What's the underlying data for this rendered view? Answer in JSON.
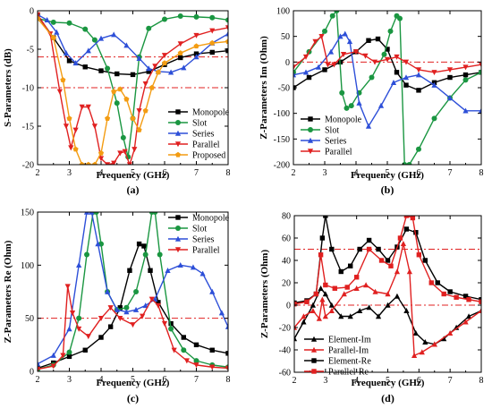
{
  "chart_data": [
    {
      "type": "line",
      "panel_label": "(a)",
      "xlabel": "Frequency (GHz)",
      "ylabel": "S-Parameters (dB)",
      "xlim": [
        2,
        8
      ],
      "ylim": [
        -20,
        0
      ],
      "xticks": [
        "2",
        "3",
        "4",
        "5",
        "6",
        "7",
        "8"
      ],
      "yticks": [
        "0",
        "-5",
        "-10",
        "-15",
        "-20"
      ],
      "legend_position": "bottom-right",
      "reference_lines": [
        -6,
        -10
      ],
      "series": [
        {
          "name": "Monopole",
          "color": "#000000",
          "marker": "square",
          "x": [
            2,
            2.5,
            3,
            3.5,
            4,
            4.5,
            5,
            5.5,
            6,
            6.5,
            7,
            7.5,
            8
          ],
          "y": [
            -0.6,
            -3.5,
            -6.5,
            -7.3,
            -7.8,
            -8.2,
            -8.3,
            -7.9,
            -7,
            -6.1,
            -5.6,
            -5.4,
            -5.2
          ]
        },
        {
          "name": "Slot",
          "color": "#1a9641",
          "marker": "circle",
          "x": [
            2,
            2.5,
            3,
            3.5,
            3.8,
            4.2,
            4.5,
            4.7,
            4.85,
            5,
            5.2,
            5.5,
            6,
            6.5,
            7,
            7.5,
            8
          ],
          "y": [
            -1,
            -1.5,
            -1.6,
            -2.4,
            -3.8,
            -7.5,
            -12,
            -16.5,
            -19,
            -14,
            -6,
            -2.3,
            -1.1,
            -0.7,
            -0.8,
            -0.9,
            -1.2
          ]
        },
        {
          "name": "Series",
          "color": "#2d4fd8",
          "marker": "triangle",
          "x": [
            2,
            2.3,
            2.6,
            2.9,
            3.2,
            3.6,
            4,
            4.4,
            4.8,
            5.2,
            5.5,
            5.8,
            6.2,
            6.6,
            7,
            7.5,
            8
          ],
          "y": [
            -0.5,
            -1.2,
            -2.8,
            -5.5,
            -6.8,
            -5.2,
            -3.6,
            -3.1,
            -4.5,
            -6.2,
            -7.5,
            -7.9,
            -8,
            -7.4,
            -6,
            -4.2,
            -3
          ]
        },
        {
          "name": "Parallel",
          "color": "#e02020",
          "marker": "inverted-triangle",
          "x": [
            2,
            2.4,
            2.7,
            2.9,
            3.05,
            3.2,
            3.4,
            3.6,
            3.8,
            4,
            4.2,
            4.4,
            4.6,
            4.75,
            4.9,
            5.05,
            5.2,
            5.4,
            5.7,
            6,
            6.5,
            7,
            7.5,
            8
          ],
          "y": [
            -0.5,
            -3,
            -10.5,
            -15,
            -17.8,
            -15.5,
            -12.5,
            -12.5,
            -15,
            -19.2,
            -20,
            -19.8,
            -18.5,
            -18.3,
            -20,
            -18,
            -13,
            -9.5,
            -7.2,
            -5.8,
            -4.3,
            -3.2,
            -2.6,
            -2.2
          ]
        },
        {
          "name": "Proposed",
          "color": "#f39c12",
          "marker": "pentagon",
          "x": [
            2,
            2.5,
            2.8,
            3,
            3.2,
            3.4,
            3.6,
            3.8,
            4,
            4.2,
            4.4,
            4.6,
            4.8,
            5,
            5.2,
            5.4,
            5.6,
            5.8,
            6,
            6.5,
            7,
            7.5,
            8
          ],
          "y": [
            -1,
            -3.5,
            -9,
            -14,
            -18,
            -20,
            -20,
            -20,
            -18.5,
            -14,
            -10.5,
            -10.2,
            -11.5,
            -14,
            -15.5,
            -13,
            -10,
            -8,
            -6.8,
            -5.5,
            -4.6,
            -4.2,
            -4
          ]
        }
      ]
    },
    {
      "type": "line",
      "panel_label": "(b)",
      "xlabel": "Frequency (GHz)",
      "ylabel": "Z-Parameters Im (Ohm)",
      "xlim": [
        2,
        8
      ],
      "ylim": [
        -200,
        100
      ],
      "xticks": [
        "2",
        "3",
        "4",
        "5",
        "6",
        "7",
        "8"
      ],
      "yticks": [
        "100",
        "50",
        "0",
        "-50",
        "-100",
        "-150",
        "-200"
      ],
      "legend_position": "bottom-left",
      "reference_lines": [
        0
      ],
      "series": [
        {
          "name": "Monopole",
          "color": "#000000",
          "marker": "square",
          "x": [
            2,
            2.5,
            3,
            3.5,
            4,
            4.4,
            4.7,
            5,
            5.3,
            5.6,
            6,
            6.5,
            7,
            7.5,
            8
          ],
          "y": [
            -50,
            -30,
            -15,
            0,
            20,
            42,
            45,
            25,
            -20,
            -45,
            -55,
            -40,
            -30,
            -25,
            -20
          ]
        },
        {
          "name": "Slot",
          "color": "#1a9641",
          "marker": "circle",
          "x": [
            2,
            2.5,
            3,
            3.25,
            3.38,
            3.55,
            3.7,
            3.85,
            4.1,
            4.5,
            4.9,
            5.1,
            5.3,
            5.4,
            5.55,
            5.7,
            6,
            6.5,
            7,
            7.5,
            8
          ],
          "y": [
            -20,
            20,
            60,
            90,
            100,
            -60,
            -90,
            -85,
            -60,
            -30,
            15,
            60,
            90,
            85,
            -200,
            -200,
            -170,
            -110,
            -70,
            -35,
            -20
          ]
        },
        {
          "name": "Series",
          "color": "#2d4fd8",
          "marker": "triangle",
          "x": [
            2,
            2.4,
            2.8,
            3.2,
            3.5,
            3.65,
            3.8,
            4.1,
            4.4,
            4.8,
            5.2,
            5.6,
            6,
            6.5,
            7,
            7.5,
            8
          ],
          "y": [
            -25,
            -20,
            -10,
            20,
            50,
            55,
            40,
            -80,
            -125,
            -85,
            -40,
            -30,
            -25,
            -45,
            -70,
            -95,
            -95
          ]
        },
        {
          "name": "Parallel",
          "color": "#e02020",
          "marker": "inverted-triangle",
          "x": [
            2,
            2.4,
            2.7,
            2.9,
            3.1,
            3.3,
            3.6,
            4,
            4.3,
            4.6,
            5,
            5.3,
            5.6,
            6,
            6.5,
            7,
            7.5,
            8
          ],
          "y": [
            -10,
            10,
            40,
            50,
            -5,
            -5,
            15,
            20,
            12,
            0,
            5,
            10,
            0,
            -15,
            -20,
            -15,
            -10,
            -5
          ]
        }
      ]
    },
    {
      "type": "line",
      "panel_label": "(c)",
      "xlabel": "Frequency (GHz)",
      "ylabel": "Z-Parameters Re (Ohm)",
      "xlim": [
        2,
        8
      ],
      "ylim": [
        0,
        150
      ],
      "xticks": [
        "2",
        "3",
        "4",
        "5",
        "6",
        "7",
        "8"
      ],
      "yticks": [
        "150",
        "100",
        "50",
        "0"
      ],
      "legend_position": "top-right",
      "reference_lines": [
        50
      ],
      "series": [
        {
          "name": "Monopole",
          "color": "#000000",
          "marker": "square",
          "x": [
            2,
            2.5,
            3,
            3.5,
            4,
            4.3,
            4.6,
            4.9,
            5.2,
            5.35,
            5.55,
            5.8,
            6.2,
            6.6,
            7,
            7.5,
            8
          ],
          "y": [
            3,
            8,
            14,
            20,
            32,
            42,
            60,
            95,
            120,
            118,
            95,
            65,
            45,
            32,
            25,
            20,
            17
          ]
        },
        {
          "name": "Slot",
          "color": "#1a9641",
          "marker": "circle",
          "x": [
            2,
            2.5,
            3,
            3.3,
            3.55,
            3.75,
            3.85,
            4,
            4.2,
            4.5,
            4.8,
            5.1,
            5.4,
            5.6,
            5.7,
            5.85,
            6.2,
            6.6,
            7,
            7.5,
            8
          ],
          "y": [
            2,
            6,
            18,
            50,
            110,
            150,
            150,
            120,
            75,
            58,
            60,
            75,
            110,
            150,
            150,
            110,
            40,
            20,
            10,
            6,
            4
          ]
        },
        {
          "name": "Series",
          "color": "#2d4fd8",
          "marker": "triangle",
          "x": [
            2,
            2.5,
            3,
            3.3,
            3.55,
            3.7,
            3.9,
            4.2,
            4.5,
            4.8,
            5.1,
            5.4,
            5.7,
            6.1,
            6.5,
            6.9,
            7.2,
            7.5,
            7.8,
            8
          ],
          "y": [
            7,
            15,
            40,
            100,
            150,
            150,
            120,
            75,
            58,
            56,
            58,
            62,
            68,
            95,
            100,
            98,
            92,
            75,
            55,
            42
          ]
        },
        {
          "name": "Parallel",
          "color": "#e02020",
          "marker": "inverted-triangle",
          "x": [
            2,
            2.5,
            2.8,
            2.95,
            3.1,
            3.3,
            3.6,
            4,
            4.3,
            4.6,
            5,
            5.3,
            5.6,
            5.8,
            6,
            6.3,
            6.7,
            7,
            7.5,
            8
          ],
          "y": [
            2,
            5,
            15,
            80,
            55,
            40,
            33,
            50,
            60,
            50,
            44,
            52,
            68,
            62,
            45,
            20,
            10,
            6,
            4,
            3
          ]
        }
      ]
    },
    {
      "type": "line",
      "panel_label": "(d)",
      "xlabel": "Frequency (GHz)",
      "ylabel": "Z-Parameters (Ohm)",
      "xlim": [
        2,
        8
      ],
      "ylim": [
        -60,
        80
      ],
      "xticks": [
        "2",
        "3",
        "4",
        "5",
        "6",
        "7",
        "8"
      ],
      "yticks": [
        "80",
        "60",
        "40",
        "20",
        "0",
        "-20",
        "-40",
        "-60"
      ],
      "legend_position": "bottom-left",
      "reference_lines": [
        50,
        0
      ],
      "series": [
        {
          "name": "Element-Im",
          "color": "#000000",
          "marker": "triangle",
          "x": [
            2,
            2.3,
            2.6,
            2.85,
            3,
            3.2,
            3.5,
            3.8,
            4.1,
            4.4,
            4.7,
            5,
            5.3,
            5.6,
            5.9,
            6.2,
            6.5,
            6.8,
            7.2,
            7.6,
            8
          ],
          "y": [
            -30,
            -15,
            0,
            15,
            10,
            0,
            -10,
            -10,
            -5,
            -2,
            -10,
            0,
            8,
            -5,
            -25,
            -33,
            -35,
            -30,
            -20,
            -10,
            -5
          ]
        },
        {
          "name": "Parallel-Im",
          "color": "#e02020",
          "marker": "triangle",
          "x": [
            2,
            2.3,
            2.6,
            2.8,
            2.9,
            3,
            3.2,
            3.6,
            4,
            4.3,
            4.6,
            5,
            5.3,
            5.5,
            5.7,
            5.85,
            6.1,
            6.5,
            7,
            7.5,
            8
          ],
          "y": [
            -20,
            -10,
            -5,
            -12,
            5,
            -10,
            -5,
            10,
            15,
            18,
            12,
            10,
            30,
            55,
            30,
            -45,
            -42,
            -35,
            -25,
            -15,
            -5
          ]
        },
        {
          "name": "Element-Re",
          "color": "#000000",
          "marker": "square",
          "x": [
            2,
            2.4,
            2.7,
            2.9,
            3,
            3.2,
            3.5,
            3.8,
            4.1,
            4.4,
            4.7,
            5,
            5.3,
            5.6,
            5.9,
            6.2,
            6.6,
            7,
            7.5,
            8
          ],
          "y": [
            2,
            4,
            10,
            60,
            80,
            50,
            30,
            35,
            50,
            58,
            50,
            40,
            52,
            68,
            65,
            40,
            20,
            12,
            8,
            5
          ]
        },
        {
          "name": "Parallel-Re",
          "color": "#e02020",
          "marker": "square",
          "x": [
            2,
            2.4,
            2.7,
            2.85,
            3,
            3.3,
            3.7,
            4,
            4.4,
            4.8,
            5.1,
            5.4,
            5.6,
            5.8,
            6,
            6.4,
            6.8,
            7.2,
            7.6,
            8
          ],
          "y": [
            1,
            3,
            10,
            45,
            18,
            15,
            16,
            25,
            50,
            40,
            35,
            60,
            80,
            78,
            45,
            20,
            10,
            7,
            5,
            3
          ]
        }
      ]
    }
  ]
}
